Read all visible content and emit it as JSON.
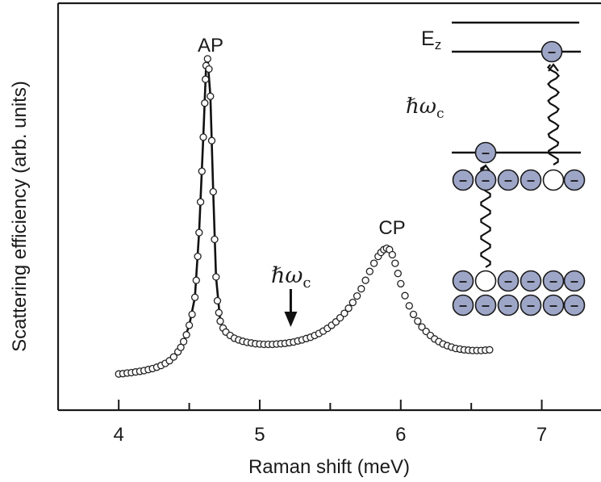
{
  "chart_data": {
    "type": "scatter",
    "xlabel": "Raman shift (meV)",
    "ylabel": "Scattering efficiency (arb. units)",
    "xlim": [
      3.57,
      7.42
    ],
    "ylim": [
      0,
      1
    ],
    "x_ticks_major": [
      4,
      5,
      6,
      7
    ],
    "x_ticks_minor": [
      4.5,
      5.5,
      6.5
    ],
    "y_ticks": [],
    "grid": false,
    "legend": "none",
    "marker_style": "open-circle",
    "fit_line": "solid line through AP peak",
    "annotations": {
      "ap": "AP",
      "cp": "CP",
      "cyclotron_glyph": "ℏω",
      "cyclotron_sub": "c",
      "cyclotron_arrow_x": 5.22
    },
    "inset": {
      "ez_main": "E",
      "ez_sub": "z",
      "hw_glyph": "ℏω",
      "hw_sub": "c",
      "electron_sign": "–"
    },
    "series": [
      {
        "points": [
          [
            4.0,
            0.035
          ],
          [
            4.03,
            0.036
          ],
          [
            4.06,
            0.038
          ],
          [
            4.09,
            0.039
          ],
          [
            4.12,
            0.041
          ],
          [
            4.15,
            0.043
          ],
          [
            4.18,
            0.045
          ],
          [
            4.21,
            0.048
          ],
          [
            4.24,
            0.051
          ],
          [
            4.27,
            0.055
          ],
          [
            4.3,
            0.06
          ],
          [
            4.33,
            0.066
          ],
          [
            4.36,
            0.074
          ],
          [
            4.39,
            0.085
          ],
          [
            4.42,
            0.1
          ],
          [
            4.44,
            0.113
          ],
          [
            4.46,
            0.13
          ],
          [
            4.48,
            0.15
          ],
          [
            4.5,
            0.178
          ],
          [
            4.52,
            0.21
          ],
          [
            4.54,
            0.26
          ],
          [
            4.55,
            0.31
          ],
          [
            4.56,
            0.38
          ],
          [
            4.57,
            0.45
          ],
          [
            4.58,
            0.54
          ],
          [
            4.59,
            0.63
          ],
          [
            4.6,
            0.73
          ],
          [
            4.61,
            0.83
          ],
          [
            4.615,
            0.9
          ],
          [
            4.62,
            0.94
          ],
          [
            4.63,
            0.96
          ],
          [
            4.64,
            0.93
          ],
          [
            4.65,
            0.85
          ],
          [
            4.66,
            0.72
          ],
          [
            4.67,
            0.57
          ],
          [
            4.68,
            0.43
          ],
          [
            4.69,
            0.32
          ],
          [
            4.7,
            0.25
          ],
          [
            4.71,
            0.215
          ],
          [
            4.72,
            0.19
          ],
          [
            4.74,
            0.17
          ],
          [
            4.76,
            0.158
          ],
          [
            4.79,
            0.148
          ],
          [
            4.82,
            0.14
          ],
          [
            4.85,
            0.135
          ],
          [
            4.88,
            0.131
          ],
          [
            4.91,
            0.128
          ],
          [
            4.94,
            0.126
          ],
          [
            4.97,
            0.124
          ],
          [
            5.0,
            0.123
          ],
          [
            5.03,
            0.122
          ],
          [
            5.06,
            0.122
          ],
          [
            5.09,
            0.122
          ],
          [
            5.12,
            0.123
          ],
          [
            5.15,
            0.124
          ],
          [
            5.18,
            0.125
          ],
          [
            5.21,
            0.127
          ],
          [
            5.24,
            0.129
          ],
          [
            5.27,
            0.132
          ],
          [
            5.3,
            0.135
          ],
          [
            5.33,
            0.139
          ],
          [
            5.36,
            0.143
          ],
          [
            5.39,
            0.148
          ],
          [
            5.42,
            0.154
          ],
          [
            5.45,
            0.161
          ],
          [
            5.48,
            0.169
          ],
          [
            5.51,
            0.178
          ],
          [
            5.54,
            0.188
          ],
          [
            5.57,
            0.2
          ],
          [
            5.6,
            0.213
          ],
          [
            5.63,
            0.228
          ],
          [
            5.66,
            0.245
          ],
          [
            5.69,
            0.264
          ],
          [
            5.72,
            0.285
          ],
          [
            5.75,
            0.31
          ],
          [
            5.78,
            0.336
          ],
          [
            5.81,
            0.36
          ],
          [
            5.84,
            0.38
          ],
          [
            5.86,
            0.392
          ],
          [
            5.88,
            0.4
          ],
          [
            5.9,
            0.404
          ],
          [
            5.92,
            0.4
          ],
          [
            5.94,
            0.385
          ],
          [
            5.96,
            0.36
          ],
          [
            5.98,
            0.33
          ],
          [
            6.0,
            0.3
          ],
          [
            6.03,
            0.265
          ],
          [
            6.06,
            0.235
          ],
          [
            6.09,
            0.21
          ],
          [
            6.12,
            0.19
          ],
          [
            6.15,
            0.173
          ],
          [
            6.18,
            0.16
          ],
          [
            6.21,
            0.148
          ],
          [
            6.24,
            0.138
          ],
          [
            6.27,
            0.13
          ],
          [
            6.3,
            0.123
          ],
          [
            6.33,
            0.118
          ],
          [
            6.36,
            0.114
          ],
          [
            6.39,
            0.11
          ],
          [
            6.42,
            0.108
          ],
          [
            6.45,
            0.106
          ],
          [
            6.48,
            0.105
          ],
          [
            6.51,
            0.104
          ],
          [
            6.54,
            0.104
          ],
          [
            6.57,
            0.104
          ],
          [
            6.6,
            0.105
          ],
          [
            6.63,
            0.106
          ]
        ]
      }
    ],
    "fit_points": [
      [
        4.45,
        0.12
      ],
      [
        4.5,
        0.178
      ],
      [
        4.54,
        0.26
      ],
      [
        4.57,
        0.45
      ],
      [
        4.6,
        0.73
      ],
      [
        4.62,
        0.94
      ],
      [
        4.63,
        0.96
      ],
      [
        4.65,
        0.85
      ],
      [
        4.67,
        0.57
      ],
      [
        4.69,
        0.32
      ],
      [
        4.72,
        0.19
      ]
    ]
  }
}
